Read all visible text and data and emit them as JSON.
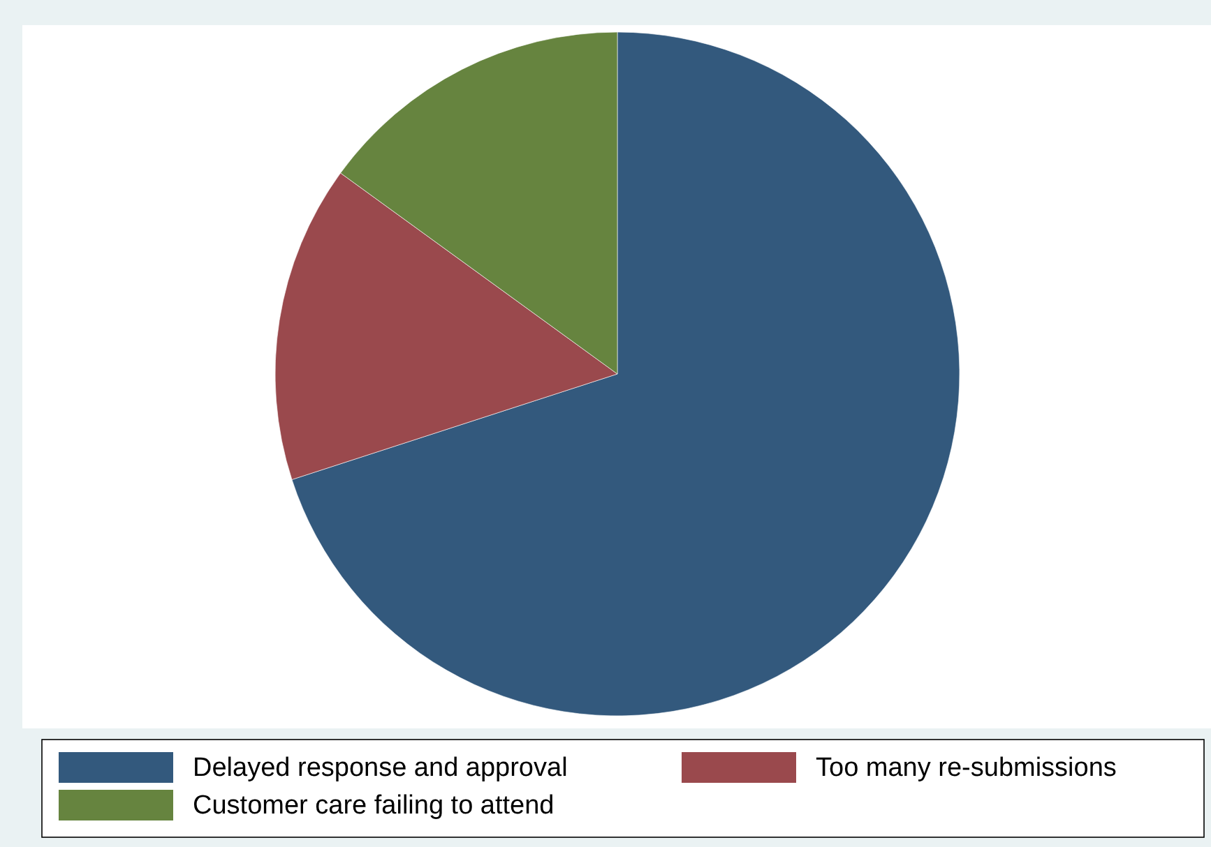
{
  "chart_data": {
    "type": "pie",
    "categories": [
      "Delayed response and approval",
      "Too many re-submissions",
      "Customer care failing to attend"
    ],
    "values": [
      70,
      15,
      15
    ],
    "colors": [
      "#33597d",
      "#9a494d",
      "#66843f"
    ],
    "legend": "bottom"
  }
}
